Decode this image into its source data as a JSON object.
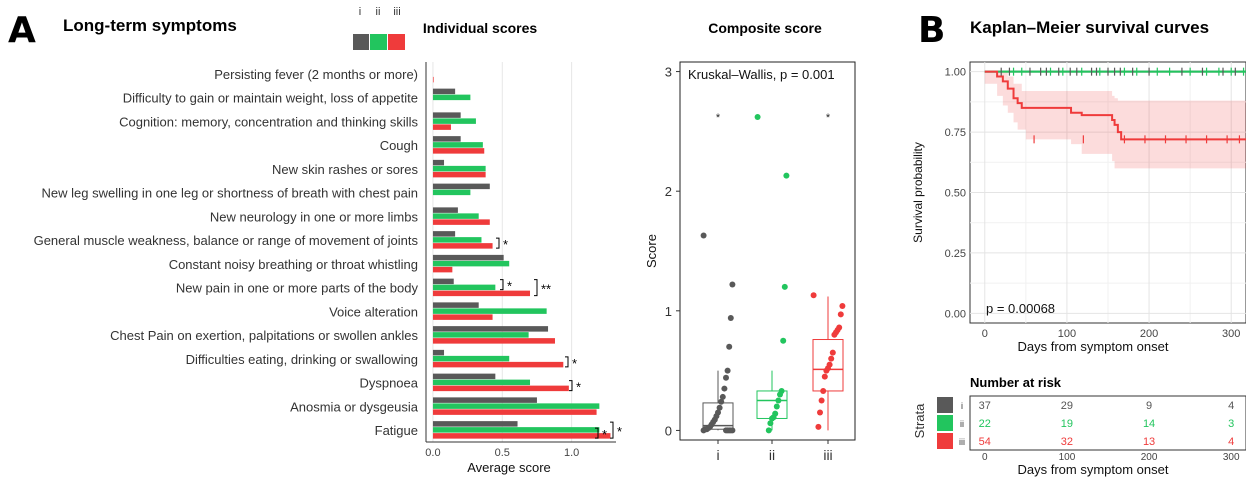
{
  "panel_a": {
    "letter": "A",
    "title": "Long-term symptoms",
    "group_keys": [
      "i",
      "ii",
      "iii"
    ],
    "bar_title": "Individual scores",
    "box_title": "Composite score"
  },
  "panel_b": {
    "letter": "B",
    "title": "Kaplan–Meier survival curves",
    "risk_title": "Number at risk",
    "strata_label": "Strata"
  },
  "colors": {
    "i": "#595959",
    "ii": "#22c55e",
    "iii": "#ef3b3b"
  },
  "chart_data": [
    {
      "type": "bar",
      "orientation": "horizontal",
      "title": "Individual scores",
      "xlabel": "Average score",
      "ylabel": "",
      "xlim": [
        -0.05,
        1.32
      ],
      "xticks": [
        "0.0",
        "0.5",
        "1.0"
      ],
      "categories": [
        "Persisting fever (2 months or more)",
        "Difficulty to gain or maintain weight, loss of appetite",
        "Cognition: memory, concentration and thinking skills",
        "Cough",
        "New skin rashes or sores",
        "New leg swelling in one leg or shortness of breath with chest pain",
        "New neurology in one or more limbs",
        "General muscle weakness, balance or range of movement of joints",
        "Constant noisy breathing or throat whistling",
        "New pain in one or more parts of the body",
        "Voice alteration",
        "Chest Pain on exertion, palpitations or swollen ankles",
        "Difficulties eating, drinking or swallowing",
        "Dyspnoea",
        "Anosmia or dysgeusia",
        "Fatigue"
      ],
      "series": [
        {
          "name": "i",
          "values": [
            0.0,
            0.16,
            0.2,
            0.2,
            0.08,
            0.41,
            0.18,
            0.16,
            0.51,
            0.15,
            0.33,
            0.83,
            0.08,
            0.45,
            0.75,
            0.61
          ]
        },
        {
          "name": "ii",
          "values": [
            0.0,
            0.27,
            0.31,
            0.36,
            0.38,
            0.27,
            0.33,
            0.35,
            0.55,
            0.45,
            0.82,
            0.69,
            0.55,
            0.7,
            1.2,
            1.2
          ]
        },
        {
          "name": "iii",
          "values": [
            0.005,
            0.0,
            0.13,
            0.37,
            0.38,
            0.0,
            0.41,
            0.43,
            0.14,
            0.7,
            0.43,
            0.88,
            0.94,
            0.98,
            1.18,
            1.28
          ]
        }
      ],
      "annotations": [
        {
          "category": "General muscle weakness, balance or range of movement of joints",
          "label": "*"
        },
        {
          "category": "New pain in one or more parts of the body",
          "label": "*"
        },
        {
          "category": "New pain in one or more parts of the body",
          "label": "**"
        },
        {
          "category": "Difficulties eating, drinking or swallowing",
          "label": "*"
        },
        {
          "category": "Dyspnoea",
          "label": "*"
        },
        {
          "category": "Fatigue",
          "label": "*"
        },
        {
          "category": "Fatigue",
          "label": "*"
        }
      ]
    },
    {
      "type": "scatter",
      "subtype": "boxplot",
      "title": "Composite score",
      "ylabel": "Score",
      "ylim": [
        -0.08,
        3.08
      ],
      "yticks": [
        "0",
        "1",
        "2",
        "3"
      ],
      "categories": [
        "i",
        "ii",
        "iii"
      ],
      "annotation": "Kruskal–Wallis, p = 0.001",
      "significance": [
        "*",
        "",
        "*"
      ],
      "boxes": [
        {
          "name": "i",
          "q1": 0.01,
          "median": 0.04,
          "q3": 0.23,
          "whisker_low": 0.0,
          "whisker_high": 0.5
        },
        {
          "name": "ii",
          "q1": 0.1,
          "median": 0.25,
          "q3": 0.33,
          "whisker_low": 0.0,
          "whisker_high": 0.5
        },
        {
          "name": "iii",
          "q1": 0.33,
          "median": 0.51,
          "q3": 0.76,
          "whisker_low": 0.0,
          "whisker_high": 1.12
        }
      ],
      "points": {
        "i": [
          1.63,
          1.22,
          0.94,
          0.7,
          0.5,
          0.44,
          0.35,
          0.28,
          0.24,
          0.19,
          0.15,
          0.12,
          0.09,
          0.07,
          0.05,
          0.03,
          0.02,
          0.01,
          0.01,
          0.0,
          0.0,
          0.0,
          0.0,
          0.0,
          0.0
        ],
        "ii": [
          2.62,
          2.13,
          1.2,
          0.75,
          0.33,
          0.3,
          0.25,
          0.2,
          0.14,
          0.11,
          0.1,
          0.06,
          0.0
        ],
        "iii": [
          1.13,
          1.04,
          0.97,
          0.86,
          0.84,
          0.82,
          0.8,
          0.65,
          0.6,
          0.55,
          0.52,
          0.5,
          0.45,
          0.33,
          0.25,
          0.15,
          0.03
        ]
      }
    },
    {
      "type": "line",
      "subtype": "step",
      "title": "Kaplan–Meier survival curves",
      "xlabel": "Days from symptom onset",
      "ylabel": "Survival probability",
      "xlim": [
        -18,
        318
      ],
      "ylim": [
        -0.04,
        1.04
      ],
      "xticks": [
        "0",
        "100",
        "200",
        "300"
      ],
      "yticks": [
        "0.00",
        "0.25",
        "0.50",
        "0.75",
        "1.00"
      ],
      "annotation": "p = 0.00068",
      "grid": true,
      "series": [
        {
          "name": "i",
          "x": [
            0,
            318
          ],
          "y": [
            1.0,
            1.0
          ]
        },
        {
          "name": "ii",
          "x": [
            0,
            318
          ],
          "y": [
            1.0,
            1.0
          ]
        },
        {
          "name": "iii",
          "x": [
            0,
            15,
            22,
            28,
            35,
            40,
            45,
            50,
            105,
            118,
            155,
            158,
            162,
            166,
            318
          ],
          "y": [
            1.0,
            0.98,
            0.96,
            0.93,
            0.89,
            0.87,
            0.85,
            0.85,
            0.83,
            0.82,
            0.8,
            0.78,
            0.75,
            0.72,
            0.72
          ],
          "ci_lower": [
            1.0,
            0.95,
            0.9,
            0.86,
            0.83,
            0.79,
            0.76,
            0.76,
            0.72,
            0.7,
            0.66,
            0.63,
            0.6,
            0.6,
            0.6
          ],
          "ci_upper": [
            1.0,
            1.0,
            1.0,
            0.98,
            0.95,
            0.95,
            0.92,
            0.92,
            0.92,
            0.92,
            0.9,
            0.89,
            0.88,
            0.88,
            0.88
          ]
        }
      ]
    },
    {
      "type": "table",
      "title": "Number at risk",
      "row_label": "Strata",
      "x": [
        0,
        100,
        200,
        300
      ],
      "xticks": [
        "0",
        "100",
        "200",
        "300"
      ],
      "xlabel": "Days from symptom onset",
      "rows": [
        {
          "name": "i",
          "values": [
            37,
            29,
            9,
            4
          ]
        },
        {
          "name": "ii",
          "values": [
            22,
            19,
            14,
            3
          ]
        },
        {
          "name": "iii",
          "values": [
            54,
            32,
            13,
            4
          ]
        }
      ]
    }
  ]
}
